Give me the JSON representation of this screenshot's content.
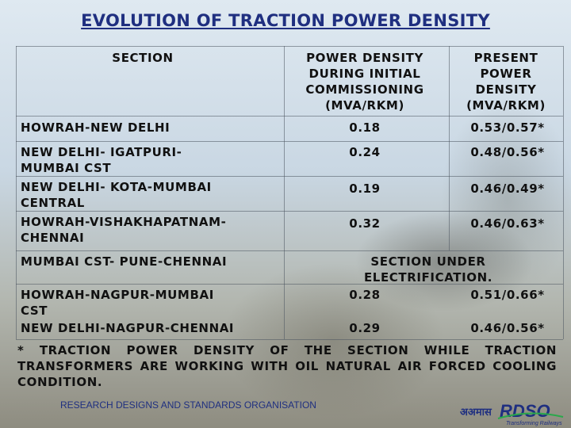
{
  "title": "EVOLUTION OF TRACTION POWER DENSITY",
  "headers": {
    "section": "SECTION",
    "initial": [
      "POWER DENSITY",
      "DURING INITIAL",
      "COMMISSIONING",
      "(MVA/RKM)"
    ],
    "present": [
      "PRESENT",
      "POWER",
      "DENSITY",
      "(MVA/RKM)"
    ]
  },
  "rows": [
    {
      "section": [
        "HOWRAH-NEW DELHI"
      ],
      "initial": "0.18",
      "present": "0.53/0.57*"
    },
    {
      "section": [
        "NEW DELHI- IGATPURI-",
        "MUMBAI CST"
      ],
      "initial": "0.24",
      "present": "0.48/0.56*"
    },
    {
      "section": [
        "NEW DELHI- KOTA-MUMBAI",
        "CENTRAL"
      ],
      "initial": "0.19",
      "present": "0.46/0.49*"
    },
    {
      "section": [
        "HOWRAH-VISHAKHAPATNAM-",
        "CHENNAI"
      ],
      "initial": "0.32",
      "present": "0.46/0.63*"
    },
    {
      "section": [
        "MUMBAI CST- PUNE-CHENNAI"
      ],
      "merged": [
        "SECTION UNDER",
        "ELECTRIFICATION."
      ]
    },
    {
      "section": [
        "HOWRAH-NAGPUR-MUMBAI",
        "CST"
      ],
      "initial": "0.28",
      "present": "0.51/0.66*"
    },
    {
      "section": [
        "NEW DELHI-NAGPUR-CHENNAI"
      ],
      "initial": "0.29",
      "present": "0.46/0.56*"
    }
  ],
  "footnote": "* TRACTION POWER DENSITY OF THE SECTION WHILE TRACTION TRANSFORMERS ARE WORKING WITH OIL NATURAL AIR FORCED COOLING CONDITION.",
  "organisation": "RESEARCH DESIGNS AND STANDARDS ORGANISATION",
  "logo": {
    "name": "rdso-logo",
    "text": "RDSO",
    "tagline": "Transforming Railways"
  },
  "colors": {
    "title": "#1f2f80",
    "logo": "#1f2f80",
    "accent": "#2aa84a"
  }
}
